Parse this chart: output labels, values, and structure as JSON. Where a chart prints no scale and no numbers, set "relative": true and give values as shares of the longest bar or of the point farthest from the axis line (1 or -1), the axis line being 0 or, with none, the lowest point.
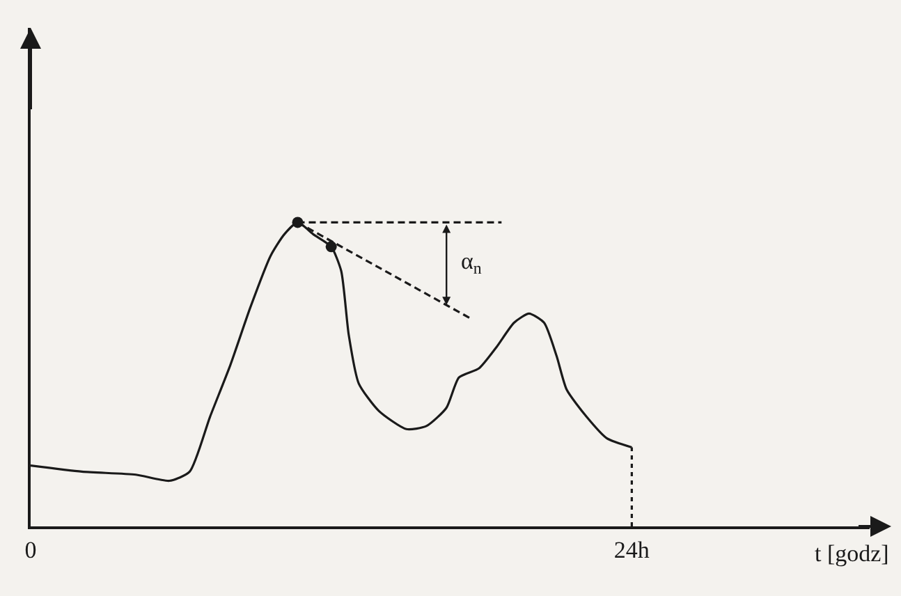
{
  "chart_data": {
    "type": "line",
    "relative": true,
    "xlabel": "t [godz]",
    "xlim": [
      0,
      33.5
    ],
    "xticks": [
      0,
      {
        "value": 24,
        "label": "24h"
      }
    ],
    "grid": false,
    "series": [
      {
        "color": "#1a1a1a",
        "x": [
          0,
          2.05,
          4.2,
          5.54,
          6.35,
          7.16,
          7.97,
          8.77,
          9.58,
          10.12,
          10.66,
          11.3,
          12.0,
          12.4,
          12.7,
          13.1,
          13.9,
          15.0,
          15.8,
          16.6,
          17.1,
          17.9,
          18.6,
          19.3,
          19.9,
          20.5,
          21.0,
          21.4,
          22.2,
          23.0,
          24
        ],
        "values": [
          0.2,
          0.18,
          0.17,
          0.15,
          0.18,
          0.36,
          0.53,
          0.72,
          0.89,
          0.96,
          1,
          0.96,
          0.92,
          0.84,
          0.63,
          0.47,
          0.38,
          0.32,
          0.33,
          0.39,
          0.49,
          0.52,
          0.59,
          0.67,
          0.7,
          0.67,
          0.56,
          0.45,
          0.36,
          0.29,
          0.26
        ]
      },
      {
        "color": "#1a1a1a",
        "line_style": "dashed",
        "x": [
          10.66,
          18.8
        ],
        "values": [
          1,
          1
        ]
      },
      {
        "color": "#1a1a1a",
        "line_style": "dashed",
        "x": [
          10.66,
          17.65
        ],
        "values": [
          1,
          0.68
        ]
      },
      {
        "color": "#1a1a1a",
        "line_style": "dotted",
        "x": [
          24,
          24
        ],
        "values": [
          0,
          0.26
        ]
      },
      {
        "type": "scatter",
        "marker": "circle",
        "color": "#1a1a1a",
        "x": [
          10.66,
          12.0
        ],
        "values": [
          1,
          0.92
        ]
      }
    ],
    "annotations": [
      "α$_{n}$"
    ]
  }
}
